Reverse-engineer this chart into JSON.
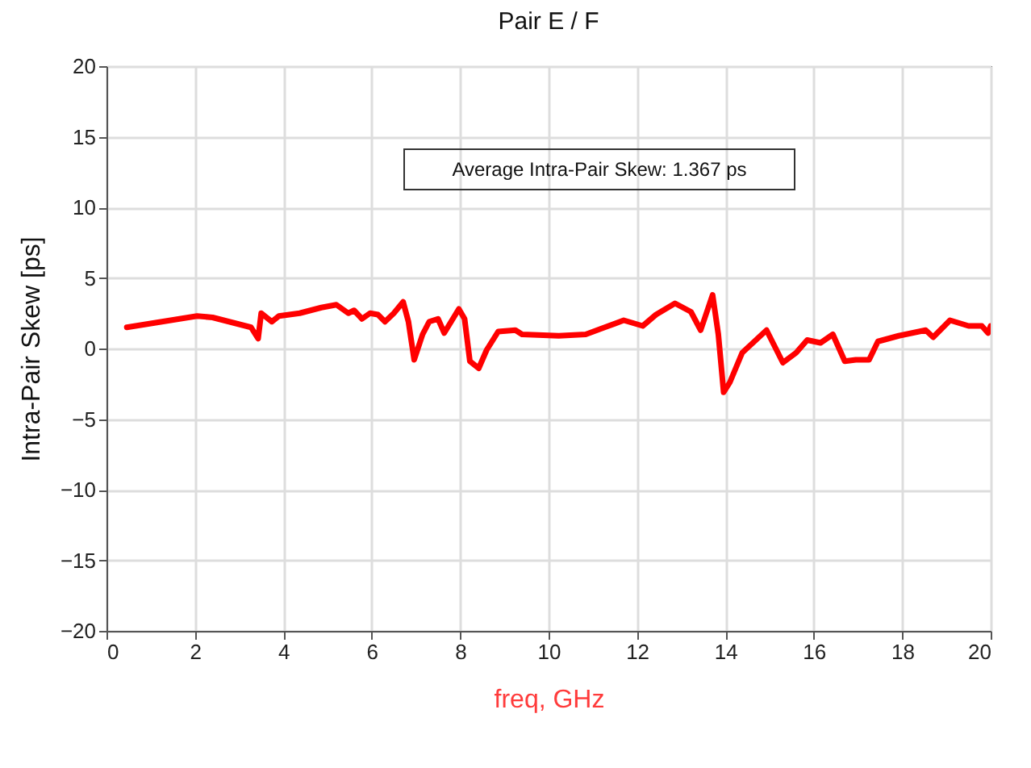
{
  "chart_data": {
    "type": "line",
    "title": "Pair E / F",
    "xlabel": "freq, GHz",
    "ylabel": "Intra-Pair Skew [ps]",
    "annotations": [
      "Average Intra-Pair Skew: 1.367 ps"
    ],
    "series": [
      {
        "color": "#ff0000",
        "x": [
          0.46,
          2.05,
          2.4,
          3.27,
          3.43,
          3.5,
          3.74,
          3.9,
          4.37,
          4.86,
          5.2,
          5.47,
          5.6,
          5.78,
          5.96,
          6.14,
          6.3,
          6.5,
          6.71,
          6.83,
          6.96,
          7.15,
          7.3,
          7.5,
          7.64,
          7.97,
          8.1,
          8.22,
          8.42,
          8.6,
          8.86,
          9.25,
          9.4,
          10.23,
          10.84,
          11.27,
          11.7,
          12.13,
          12.43,
          12.86,
          13.22,
          13.44,
          13.71,
          13.84,
          13.96,
          14.1,
          14.38,
          14.93,
          15.3,
          15.6,
          15.85,
          16.15,
          16.43,
          16.7,
          16.95,
          17.25,
          17.45,
          17.92,
          18.53,
          18.7,
          19.08,
          19.5,
          19.8,
          19.94,
          20
        ],
        "values": [
          1.5,
          2.3,
          2.2,
          1.5,
          0.7,
          2.5,
          1.9,
          2.3,
          2.5,
          2.9,
          3.1,
          2.5,
          2.7,
          2.1,
          2.5,
          2.4,
          1.9,
          2.5,
          3.3,
          1.9,
          -0.8,
          1.0,
          1.9,
          2.1,
          1.1,
          2.8,
          2.1,
          -0.9,
          -1.4,
          -0.1,
          1.2,
          1.3,
          1.0,
          0.9,
          1.0,
          1.5,
          2.0,
          1.6,
          2.4,
          3.2,
          2.6,
          1.3,
          3.8,
          1.0,
          -3.1,
          -2.4,
          -0.3,
          1.3,
          -1.0,
          -0.3,
          0.6,
          0.4,
          1.0,
          -0.9,
          -0.8,
          -0.8,
          0.5,
          0.9,
          1.3,
          0.8,
          2.0,
          1.6,
          1.6,
          1.1,
          1.6
        ]
      }
    ],
    "xlim": [
      0,
      20
    ],
    "xticks": [
      0,
      2,
      4,
      6,
      8,
      10,
      12,
      14,
      16,
      18,
      20
    ],
    "ylim": [
      -20,
      20
    ],
    "yticks": [
      -20,
      -15,
      -10,
      -5,
      0,
      5,
      10,
      15,
      20
    ],
    "grid": true,
    "marker": "none",
    "line_style": "solid"
  }
}
